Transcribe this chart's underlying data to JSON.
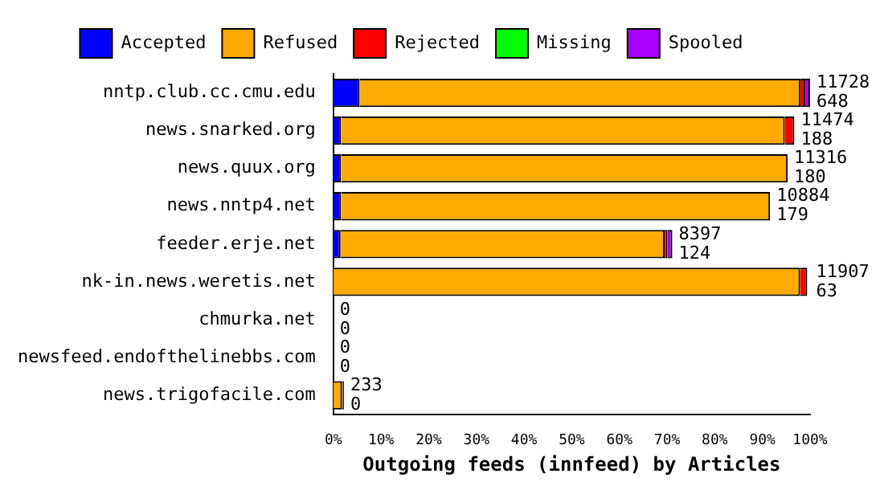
{
  "chart_data": {
    "type": "bar",
    "orientation": "horizontal",
    "stacked": true,
    "xlabel": "Outgoing feeds (innfeed) by Articles",
    "categories": [
      "nntp.club.cc.cmu.edu",
      "news.snarked.org",
      "news.quux.org",
      "news.nntp4.net",
      "feeder.erje.net",
      "nk-in.news.weretis.net",
      "chmurka.net",
      "newsfeed.endofthelinebbs.com",
      "news.trigofacile.com"
    ],
    "series": [
      {
        "name": "Accepted",
        "color": "#0000ff",
        "values": [
          5.5,
          1.6,
          1.6,
          1.6,
          1.5,
          null,
          0,
          0,
          0
        ]
      },
      {
        "name": "Refused",
        "color": "#ffaa00",
        "values": [
          92.5,
          93.1,
          93.7,
          90,
          68,
          97.9,
          0,
          0,
          1.8
        ]
      },
      {
        "name": "Rejected",
        "color": "#ff0000",
        "values": [
          1,
          2,
          0,
          0,
          0.6,
          1.5,
          0,
          0,
          0.4
        ]
      },
      {
        "name": "Missing",
        "color": "#00ff00",
        "values": [
          0,
          0,
          0,
          0,
          0,
          0,
          0,
          0,
          0
        ]
      },
      {
        "name": "Spooled",
        "color": "#aa00ff",
        "values": [
          1,
          0,
          0,
          0,
          1,
          0,
          0,
          0,
          0
        ]
      }
    ],
    "xlim": [
      0,
      100
    ],
    "xticks": [
      {
        "value": 0,
        "label": "0%"
      },
      {
        "value": 10,
        "label": "10%"
      },
      {
        "value": 20,
        "label": "20%"
      },
      {
        "value": 30,
        "label": "30%"
      },
      {
        "value": 40,
        "label": "40%"
      },
      {
        "value": 50,
        "label": "50%"
      },
      {
        "value": 60,
        "label": "60%"
      },
      {
        "value": 70,
        "label": "70%"
      },
      {
        "value": 80,
        "label": "80%"
      },
      {
        "value": 90,
        "label": "90%"
      },
      {
        "value": 100,
        "label": "100%"
      }
    ],
    "grid": false,
    "legend": "top",
    "annotations": [
      {
        "text": "11728",
        "x": 100,
        "y": "nntp.club.cc.cmu.edu"
      },
      {
        "text": "648",
        "x": 100,
        "y": "nntp.club.cc.cmu.edu"
      },
      {
        "text": "11474",
        "x": 96.7,
        "y": "news.snarked.org"
      },
      {
        "text": "188",
        "x": 96.7,
        "y": "news.snarked.org"
      },
      {
        "text": "11316",
        "x": 95.3,
        "y": "news.quux.org"
      },
      {
        "text": "180",
        "x": 95.3,
        "y": "news.quux.org"
      },
      {
        "text": "10884",
        "x": 91.6,
        "y": "news.nntp4.net"
      },
      {
        "text": "179",
        "x": 91.6,
        "y": "news.nntp4.net"
      },
      {
        "text": "8397",
        "x": 71.1,
        "y": "feeder.erje.net"
      },
      {
        "text": "124",
        "x": 71.1,
        "y": "feeder.erje.net"
      },
      {
        "text": "11907",
        "x": 99.9,
        "y": "nk-in.news.weretis.net"
      },
      {
        "text": "63",
        "x": 99.9,
        "y": "nk-in.news.weretis.net"
      },
      {
        "text": "0",
        "x": 0,
        "y": "chmurka.net"
      },
      {
        "text": "0",
        "x": 0,
        "y": "chmurka.net"
      },
      {
        "text": "0",
        "x": 0,
        "y": "newsfeed.endofthelinebbs.com"
      },
      {
        "text": "0",
        "x": 0,
        "y": "newsfeed.endofthelinebbs.com"
      },
      {
        "text": "233",
        "x": 2.2,
        "y": "news.trigofacile.com"
      },
      {
        "text": "0",
        "x": 2.2,
        "y": "news.trigofacile.com"
      }
    ]
  }
}
